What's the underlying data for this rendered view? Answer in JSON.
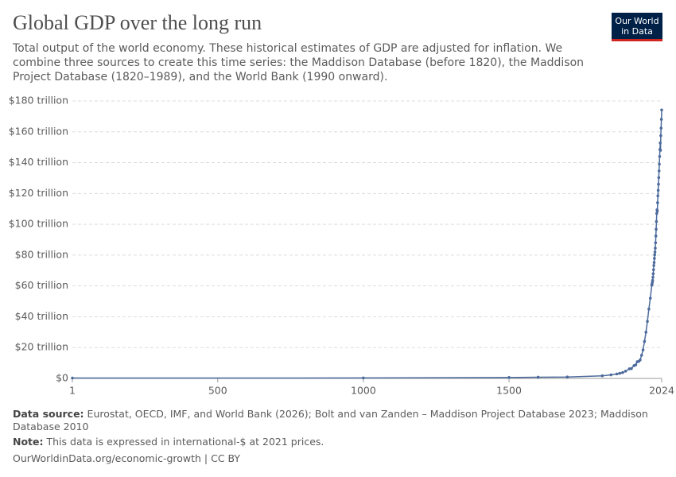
{
  "chart_data": {
    "type": "line",
    "title": "Global GDP over the long run",
    "subtitle": "Total output of the world economy. These historical estimates of GDP are adjusted for inflation. We combine three sources to create this time series: the Maddison Database (before 1820), the Maddison Project Database (1820–1989), and the World Bank (1990 onward).",
    "logo": [
      "Our World",
      "in Data"
    ],
    "source_label": "Data source:",
    "source": "Eurostat, OECD, IMF, and World Bank (2026); Bolt and van Zanden – Maddison Project Database 2023; Maddison Database 2010",
    "note_label": "Note:",
    "note": "This data is expressed in international-$ at 2021 prices.",
    "url": "OurWorldinData.org/economic-growth | CC BY",
    "xlim": [
      1,
      2024
    ],
    "xticks": [
      1,
      500,
      1000,
      1500,
      2024
    ],
    "ylim": [
      0,
      180
    ],
    "yticks": [
      {
        "value": 0,
        "label": "$0"
      },
      {
        "value": 20,
        "label": "$20 trillion"
      },
      {
        "value": 40,
        "label": "$40 trillion"
      },
      {
        "value": 60,
        "label": "$60 trillion"
      },
      {
        "value": 80,
        "label": "$80 trillion"
      },
      {
        "value": 100,
        "label": "$100 trillion"
      },
      {
        "value": 120,
        "label": "$120 trillion"
      },
      {
        "value": 140,
        "label": "$140 trillion"
      },
      {
        "value": 160,
        "label": "$160 trillion"
      },
      {
        "value": 180,
        "label": "$180 trillion"
      }
    ],
    "grid": true,
    "x": [
      1,
      1000,
      1500,
      1600,
      1700,
      1820,
      1850,
      1870,
      1880,
      1890,
      1900,
      1913,
      1920,
      1929,
      1935,
      1940,
      1945,
      1950,
      1955,
      1960,
      1965,
      1970,
      1975,
      1980,
      1985,
      1990,
      1991,
      1992,
      1993,
      1994,
      1995,
      1996,
      1997,
      1998,
      1999,
      2000,
      2001,
      2002,
      2003,
      2004,
      2005,
      2006,
      2007,
      2008,
      2009,
      2010,
      2011,
      2012,
      2013,
      2014,
      2015,
      2016,
      2017,
      2018,
      2019,
      2020,
      2021,
      2022,
      2023,
      2024
    ],
    "series": [
      {
        "color": "#4c6a9c",
        "values": [
          0.25,
          0.3,
          0.6,
          0.8,
          0.92,
          1.7,
          2.3,
          2.9,
          3.3,
          3.8,
          4.7,
          6.2,
          6.4,
          8.3,
          8.8,
          10.8,
          11.0,
          12.0,
          15.0,
          18.5,
          24.0,
          30.0,
          37.0,
          45.0,
          52.0,
          60.5,
          61.2,
          62.4,
          63.6,
          65.6,
          67.9,
          70.5,
          73.3,
          75.2,
          77.9,
          80.2,
          82.0,
          84.5,
          88.0,
          92.4,
          96.8,
          101.8,
          107.0,
          109.4,
          108.5,
          114.0,
          118.5,
          122.0,
          126.0,
          130.3,
          134.6,
          139.0,
          144.0,
          148.5,
          152.8,
          148.0,
          157.5,
          162.4,
          168.1,
          174.2
        ]
      }
    ]
  }
}
